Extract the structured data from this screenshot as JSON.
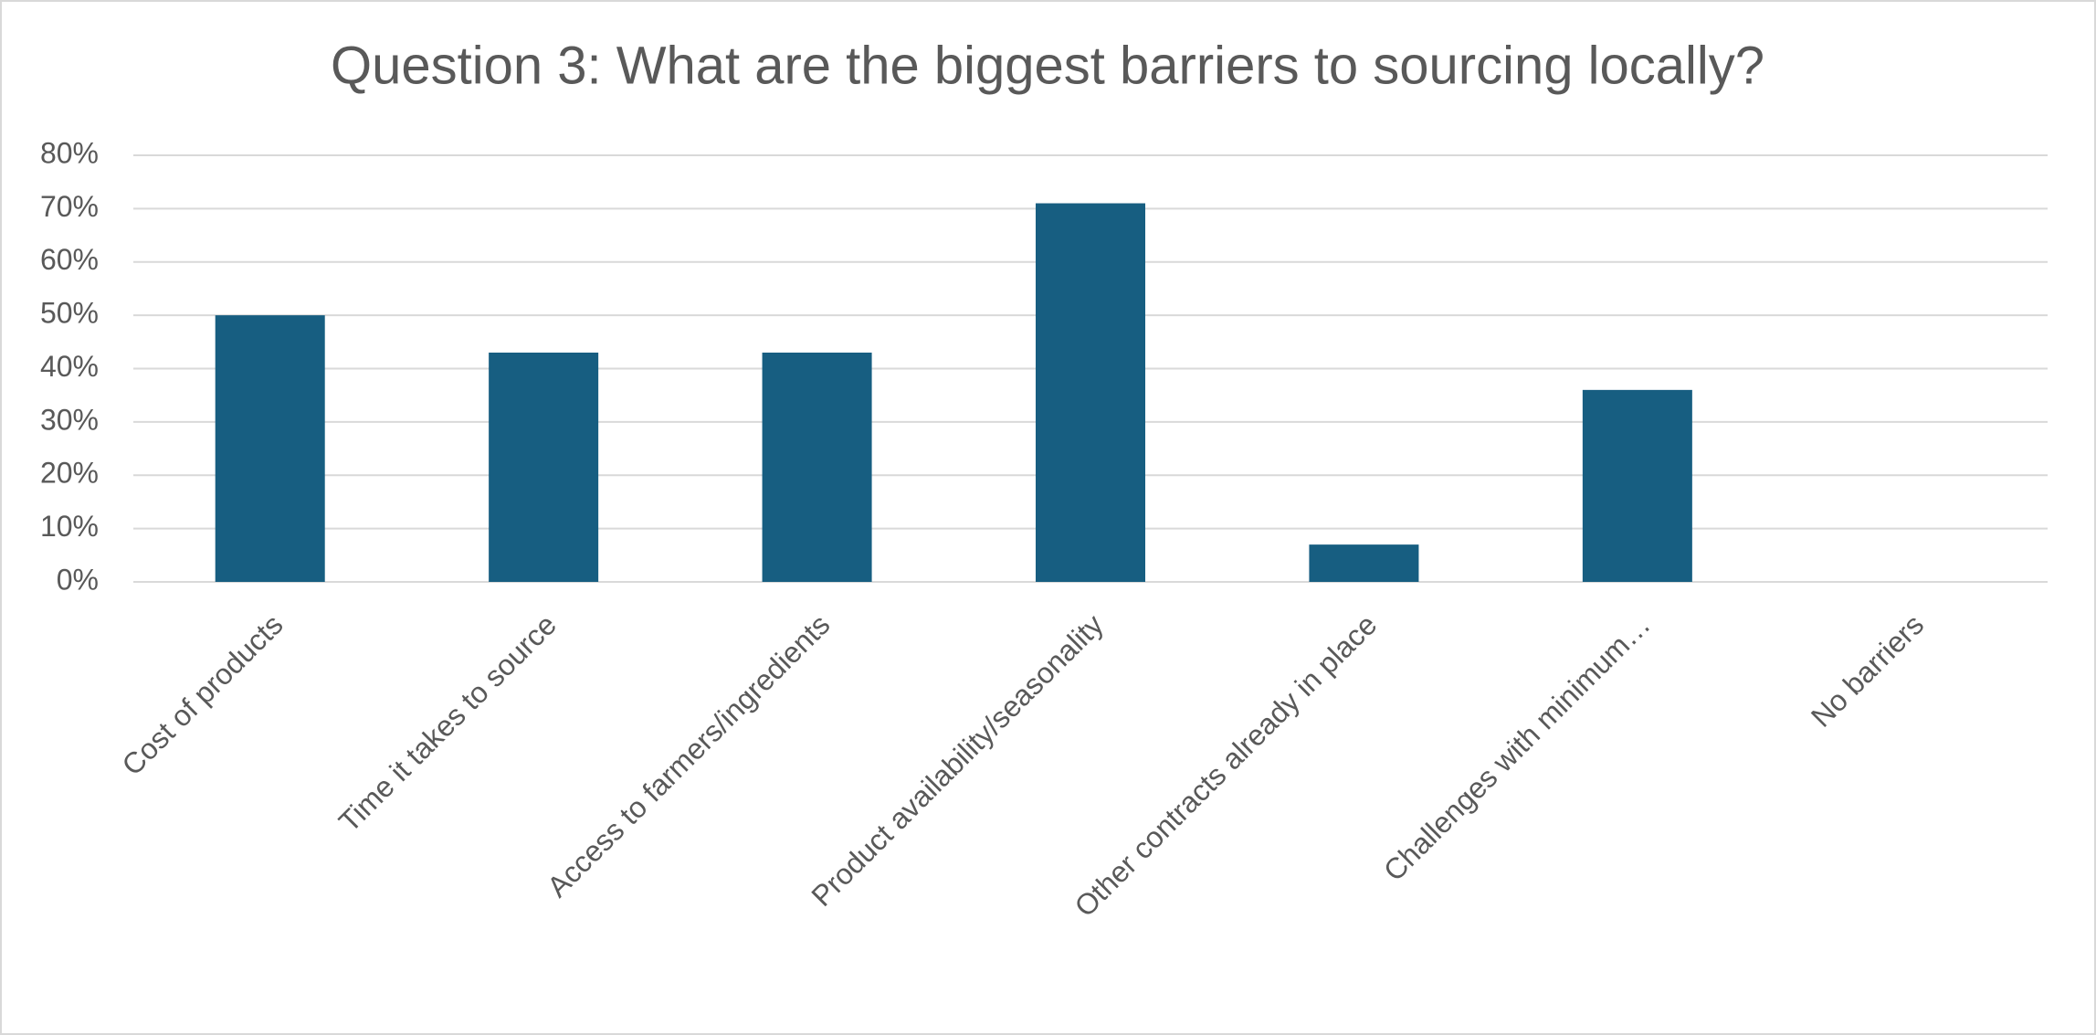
{
  "chart_data": {
    "type": "bar",
    "title": "Question 3: What are the biggest barriers to sourcing locally?",
    "categories": [
      "Cost of products",
      "Time it takes to source",
      "Access to farmers/ingredients",
      "Product availability/seasonality",
      "Other contracts already in place",
      "Challenges with minimum…",
      "No barriers"
    ],
    "values": [
      50,
      43,
      43,
      71,
      7,
      36,
      0
    ],
    "color": "#175e81",
    "ylim": [
      0,
      80
    ],
    "yticks": [
      {
        "value": 0,
        "label": "0%"
      },
      {
        "value": 10,
        "label": "10%"
      },
      {
        "value": 20,
        "label": "20%"
      },
      {
        "value": 30,
        "label": "30%"
      },
      {
        "value": 40,
        "label": "40%"
      },
      {
        "value": 50,
        "label": "50%"
      },
      {
        "value": 60,
        "label": "60%"
      },
      {
        "value": 70,
        "label": "70%"
      },
      {
        "value": 80,
        "label": "80%"
      }
    ],
    "grid": true
  }
}
